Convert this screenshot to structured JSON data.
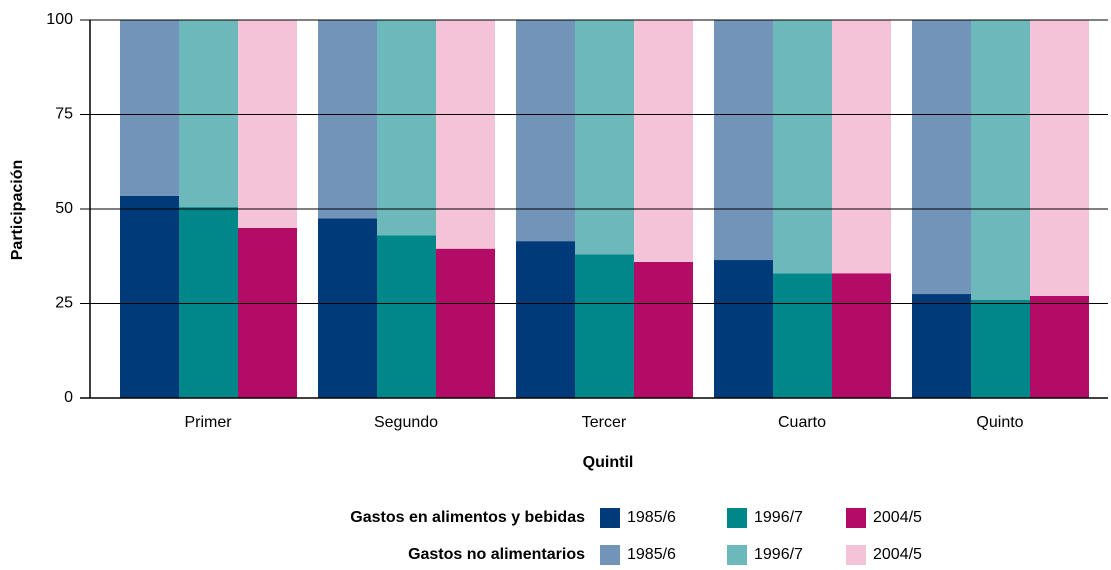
{
  "chart_data": {
    "type": "grouped-stacked-bar",
    "x_label": "Quintil",
    "y_label": "Participación",
    "categories": [
      "Primer",
      "Segundo",
      "Tercer",
      "Cuarto",
      "Quinto"
    ],
    "ylim": [
      0,
      100
    ],
    "yticks": [
      0,
      25,
      50,
      75,
      100
    ],
    "grid": true,
    "stack_groups": [
      {
        "name": "Gastos en alimentos y bebidas",
        "series": [
          {
            "name": "1985/6",
            "color": "#003a78",
            "values": [
              53.5,
              47.5,
              41.5,
              36.5,
              27.5
            ]
          },
          {
            "name": "1996/7",
            "color": "#00878a",
            "values": [
              50.5,
              43,
              38,
              33,
              26
            ]
          },
          {
            "name": "2004/5",
            "color": "#b30c66",
            "values": [
              45,
              39.5,
              36,
              33,
              27
            ]
          }
        ]
      },
      {
        "name": "Gastos no alimentarios",
        "series": [
          {
            "name": "1985/6",
            "color": "#7294b8",
            "values": [
              46.5,
              52.5,
              58.5,
              63.5,
              72.5
            ]
          },
          {
            "name": "1996/7",
            "color": "#6db8ba",
            "values": [
              49.5,
              57,
              62,
              67,
              74
            ]
          },
          {
            "name": "2004/5",
            "color": "#f4c3d8",
            "values": [
              55,
              60.5,
              64,
              67,
              73
            ]
          }
        ]
      }
    ]
  }
}
